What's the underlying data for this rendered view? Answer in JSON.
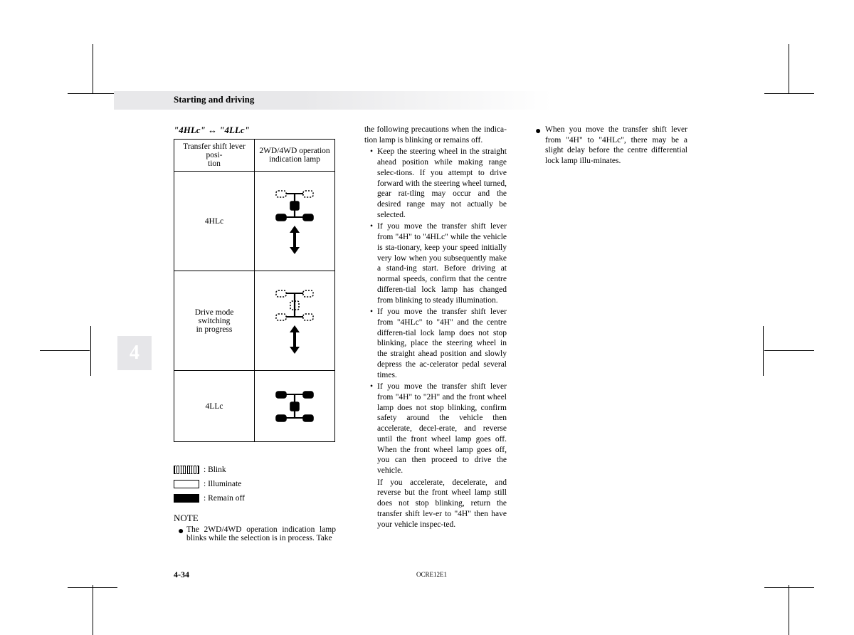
{
  "header": {
    "section_title": "Starting and driving",
    "subtitle": "\"4HLc\" ↔ \"4LLc\""
  },
  "tab": {
    "label": "4"
  },
  "table": {
    "col1_header": "Transfer shift lever posi-\ntion",
    "col2_header": "2WD/4WD operation indication lamp",
    "rows": [
      {
        "label": "4HLc",
        "mode": "front_blink_center_on",
        "show_arrow": true
      },
      {
        "label": "Drive mode switching\nin progress",
        "mode": "all_blink",
        "show_arrow": true
      },
      {
        "label": "4LLc",
        "mode": "all_on",
        "show_arrow": false
      }
    ]
  },
  "legend": {
    "blink": ": Blink",
    "illuminate": ": Illuminate",
    "remain_off": ": Remain off"
  },
  "note": {
    "heading": "NOTE",
    "item1": "The 2WD/4WD operation indication lamp blinks while the selection is in process. Take"
  },
  "col2": {
    "lead": "the following precautions when the indica-tion lamp is blinking or remains off.",
    "bullets": [
      "Keep the steering wheel in the straight ahead position while making range selec-tions. If you attempt to drive forward with the steering wheel turned, gear rat-tling may occur and the desired range may not actually be selected.",
      "If you move the transfer shift lever from \"4H\" to \"4HLc\" while the vehicle is sta-tionary, keep your speed initially very low when you subsequently make a stand-ing start. Before driving at normal speeds, confirm that the centre differen-tial lock lamp has changed from blinking to steady illumination.",
      "If you move the transfer shift lever from \"4HLc\" to \"4H\" and the centre differen-tial lock lamp does not stop blinking, place the steering wheel in the straight ahead position and slowly depress the ac-celerator pedal several times.",
      "If you move the transfer shift lever from \"4H\" to \"2H\" and the front wheel lamp does not stop blinking, confirm safety around the vehicle then accelerate, decel-erate, and reverse until the front wheel lamp goes off. When the front wheel lamp goes off, you can then proceed to drive the vehicle."
    ],
    "trail": "If you accelerate, decelerate, and reverse but the front wheel lamp still does not stop blinking, return the transfer shift lev-er to \"4H\" then have your vehicle inspec-ted."
  },
  "col3": {
    "item": "When you move the transfer shift lever from \"4H\" to \"4HLc\", there may be a slight delay before the centre differential lock lamp illu-minates."
  },
  "footer": {
    "page": "4-34",
    "doc_id": "OCRE12E1"
  },
  "colors": {
    "header_bg": "#e8e8ea",
    "tab_bg": "#e6e6e9",
    "text": "#000000"
  }
}
